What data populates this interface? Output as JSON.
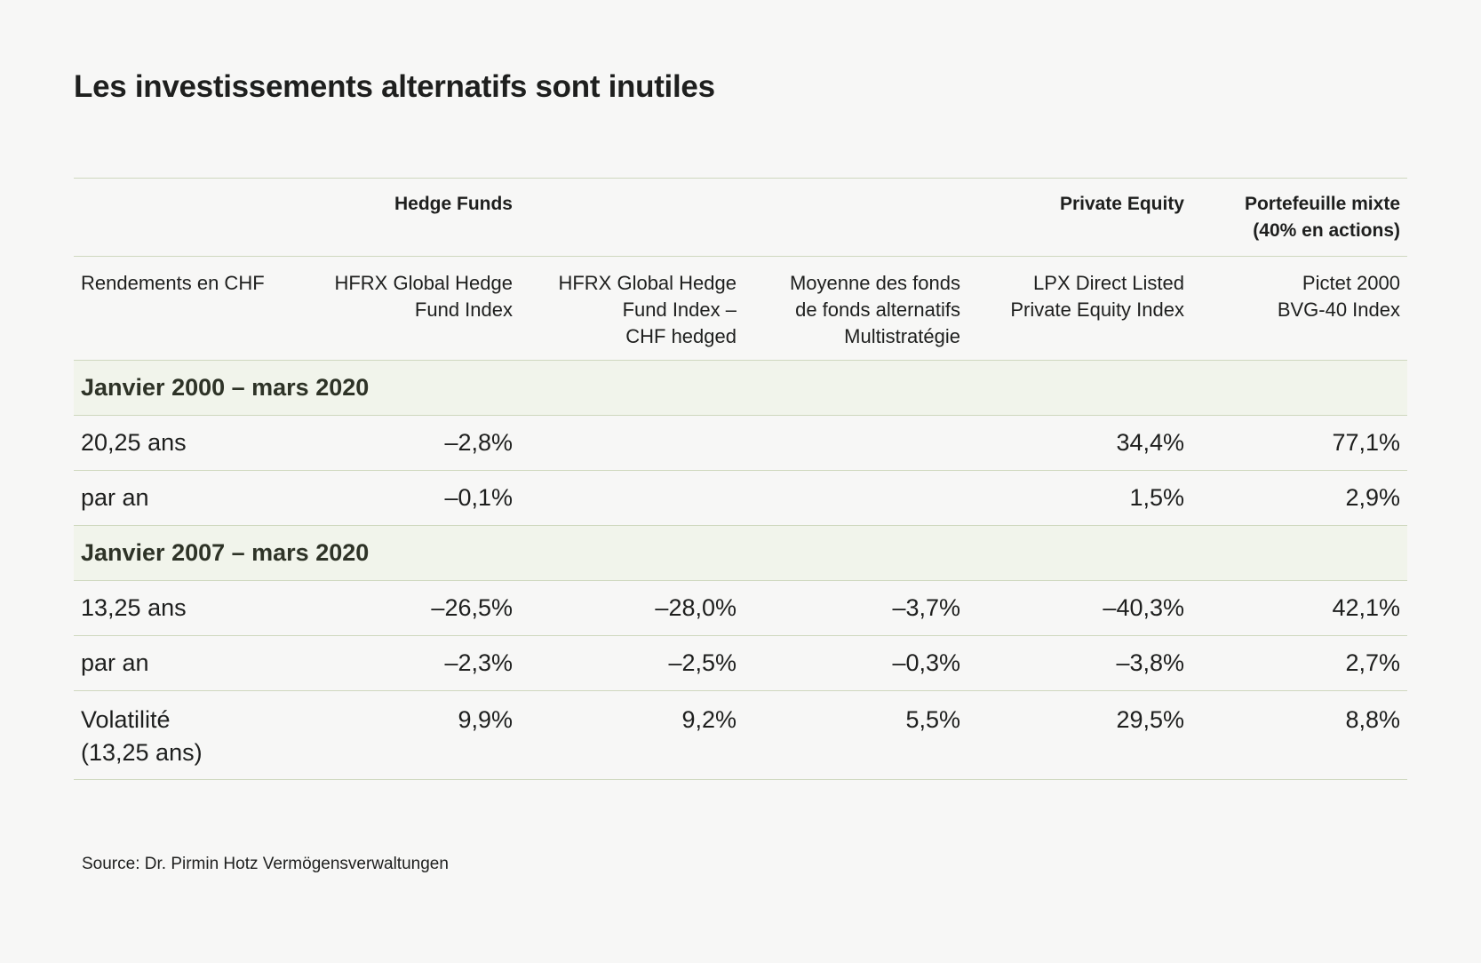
{
  "title": "Les investissements alternatifs sont inutiles",
  "table": {
    "group_headers": [
      "",
      "Hedge Funds",
      "",
      "",
      "Private Equity",
      "Portefeuille mixte (40% en actions)"
    ],
    "group_header_lines": {
      "portefeuille_line1": "Portefeuille mixte",
      "portefeuille_line2": "(40% en actions)"
    },
    "index_headers": {
      "returns": "Rendements en CHF",
      "hfrx_line1": "HFRX Global Hedge",
      "hfrx_line2": "Fund Index",
      "hfrx_chf_line1": "HFRX Global Hedge",
      "hfrx_chf_line2": "Fund Index –",
      "hfrx_chf_line3": "CHF hedged",
      "moyenne_line1": "Moyenne des fonds",
      "moyenne_line2": "de fonds alternatifs",
      "moyenne_line3": "Multistratégie",
      "lpx_line1": "LPX Direct Listed",
      "lpx_line2": "Private Equity Index",
      "pictet_line1": "Pictet 2000",
      "pictet_line2": "BVG-40 Index"
    },
    "sections": [
      {
        "title": "Janvier 2000 – mars 2020",
        "rows": [
          {
            "label": "20,25 ans",
            "values": [
              "–2,8%",
              "",
              "",
              "34,4%",
              "77,1%"
            ]
          },
          {
            "label": "par an",
            "values": [
              "–0,1%",
              "",
              "",
              "1,5%",
              "2,9%"
            ]
          }
        ]
      },
      {
        "title": "Janvier 2007 – mars 2020",
        "rows": [
          {
            "label": "13,25 ans",
            "values": [
              "–26,5%",
              "–28,0%",
              "–3,7%",
              "–40,3%",
              "42,1%"
            ]
          },
          {
            "label": "par an",
            "values": [
              "–2,3%",
              "–2,5%",
              "–0,3%",
              "–3,8%",
              "2,7%"
            ]
          },
          {
            "label_line1": "Volatilité",
            "label_line2": "(13,25 ans)",
            "values": [
              "9,9%",
              "9,2%",
              "5,5%",
              "29,5%",
              "8,8%"
            ]
          }
        ]
      }
    ]
  },
  "source": "Source: Dr. Pirmin Hotz Vermögensverwaltungen",
  "colors": {
    "background": "#f7f7f6",
    "rule": "#cfd8bf",
    "section_fill": "#f1f4eb",
    "text": "#1e1f1e"
  }
}
